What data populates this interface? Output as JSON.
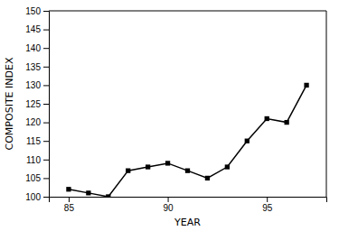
{
  "chart_data": {
    "type": "line",
    "x": [
      85,
      86,
      87,
      88,
      89,
      90,
      91,
      92,
      93,
      94,
      95,
      96,
      97
    ],
    "values": [
      102,
      101,
      100,
      107,
      108,
      109,
      107,
      105,
      108,
      115,
      121,
      120,
      130
    ],
    "xlabel": "YEAR",
    "ylabel": "COMPOSITE INDEX",
    "xlim": [
      84,
      98
    ],
    "ylim": [
      100,
      150
    ],
    "xticks": [
      85,
      90,
      95
    ],
    "yticks": [
      100,
      105,
      110,
      115,
      120,
      125,
      130,
      135,
      140,
      145,
      150
    ],
    "color": "#000000",
    "marker": "square",
    "grid": false
  }
}
